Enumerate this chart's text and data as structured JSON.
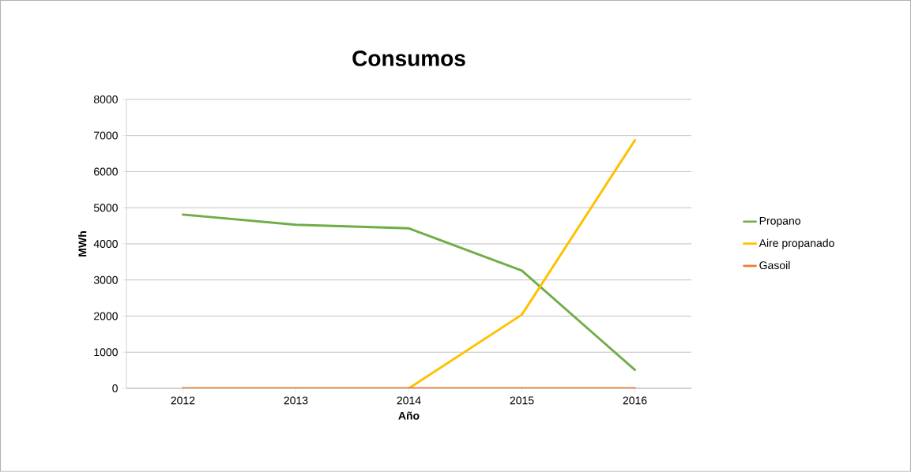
{
  "chart_data": {
    "type": "line",
    "title": "Consumos",
    "xlabel": "Año",
    "ylabel": "MWh",
    "categories": [
      "2012",
      "2013",
      "2014",
      "2015",
      "2016"
    ],
    "series": [
      {
        "name": "Propano",
        "color": "#70ad47",
        "values": [
          4810,
          4530,
          4430,
          3260,
          510
        ]
      },
      {
        "name": "Aire propanado",
        "color": "#ffc000",
        "values": [
          null,
          null,
          0,
          2040,
          6870
        ]
      },
      {
        "name": "Gasoil",
        "color": "#ed7d31",
        "values": [
          0,
          0,
          0,
          0,
          0
        ]
      }
    ],
    "ylim": [
      0,
      8000
    ],
    "yticks": [
      0,
      1000,
      2000,
      3000,
      4000,
      5000,
      6000,
      7000,
      8000
    ],
    "grid": "y",
    "legend": "right"
  }
}
